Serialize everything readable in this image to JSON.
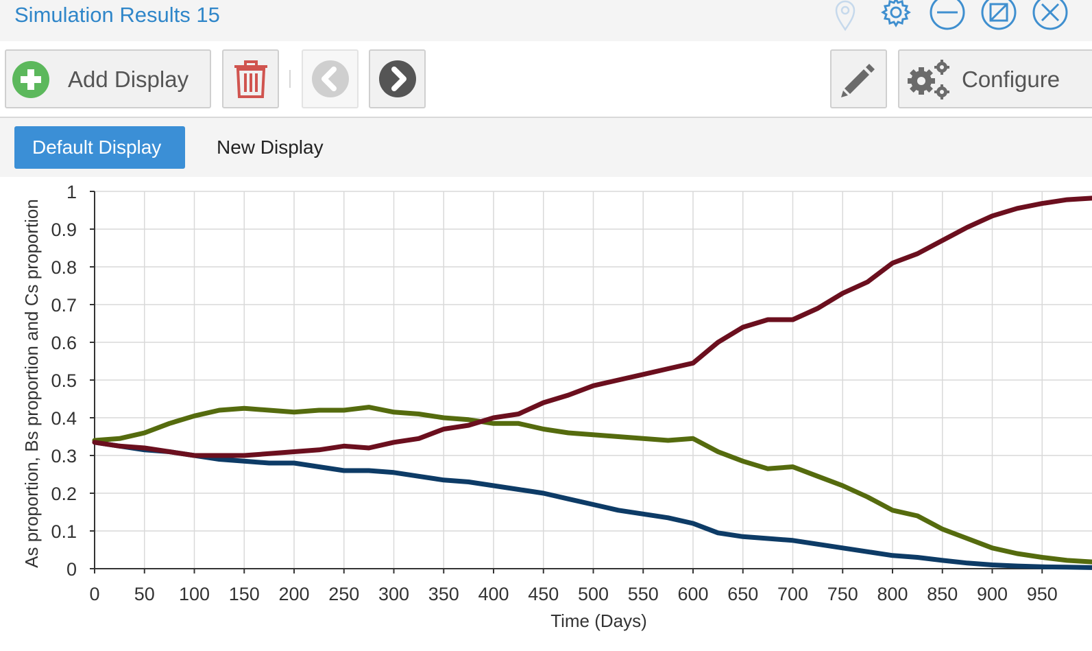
{
  "window": {
    "title": "Simulation Results 15",
    "icons": [
      "pin-icon",
      "settings-icon",
      "minimize-icon",
      "restore-icon",
      "close-icon"
    ]
  },
  "toolbar": {
    "add_display_label": "Add Display",
    "configure_label": "Configure",
    "icons": [
      "plus-circle-icon",
      "trash-icon",
      "chevron-left-icon",
      "chevron-right-icon",
      "pencil-icon",
      "gears-icon"
    ]
  },
  "tabs": [
    {
      "label": "Default Display",
      "active": true
    },
    {
      "label": "New Display",
      "active": false
    }
  ],
  "colors": {
    "title": "#2f86c9",
    "active_tab": "#3b8fd6",
    "add_icon": "#5cb85c",
    "trash_icon": "#c9302c",
    "series_as": "#0d3b66",
    "series_bs": "#556b0e",
    "series_cs": "#6b0f1e"
  },
  "chart_data": {
    "type": "line",
    "xlabel": "Time (Days)",
    "ylabel": "As proportion, Bs proportion and Cs proportion",
    "xlim": [
      0,
      1000
    ],
    "ylim": [
      0,
      1
    ],
    "xticks": [
      0,
      50,
      100,
      150,
      200,
      250,
      300,
      350,
      400,
      450,
      500,
      550,
      600,
      650,
      700,
      750,
      800,
      850,
      900,
      950
    ],
    "yticks": [
      0,
      0.1,
      0.2,
      0.3,
      0.4,
      0.5,
      0.6,
      0.7,
      0.8,
      0.9,
      1
    ],
    "ytick_labels": [
      "0",
      "0.1",
      "0.2",
      "0.3",
      "0.4",
      "0.5",
      "0.6",
      "0.7",
      "0.8",
      "0.9",
      "1"
    ],
    "grid": true,
    "legend": "none",
    "x": [
      0,
      25,
      50,
      75,
      100,
      125,
      150,
      175,
      200,
      225,
      250,
      275,
      300,
      325,
      350,
      375,
      400,
      425,
      450,
      475,
      500,
      525,
      550,
      575,
      600,
      625,
      650,
      675,
      700,
      725,
      750,
      775,
      800,
      825,
      850,
      875,
      900,
      925,
      950,
      975,
      1000
    ],
    "series": [
      {
        "values": [
          0.335,
          0.325,
          0.315,
          0.31,
          0.3,
          0.29,
          0.285,
          0.28,
          0.28,
          0.27,
          0.26,
          0.26,
          0.255,
          0.245,
          0.235,
          0.23,
          0.22,
          0.21,
          0.2,
          0.185,
          0.17,
          0.155,
          0.145,
          0.135,
          0.12,
          0.095,
          0.085,
          0.08,
          0.075,
          0.065,
          0.055,
          0.045,
          0.035,
          0.03,
          0.022,
          0.015,
          0.01,
          0.007,
          0.005,
          0.004,
          0.003
        ]
      },
      {
        "values": [
          0.34,
          0.345,
          0.36,
          0.385,
          0.405,
          0.42,
          0.425,
          0.42,
          0.415,
          0.42,
          0.42,
          0.428,
          0.415,
          0.41,
          0.4,
          0.395,
          0.385,
          0.385,
          0.37,
          0.36,
          0.355,
          0.35,
          0.345,
          0.34,
          0.345,
          0.31,
          0.285,
          0.265,
          0.27,
          0.245,
          0.22,
          0.19,
          0.155,
          0.14,
          0.105,
          0.08,
          0.055,
          0.04,
          0.03,
          0.022,
          0.018
        ]
      },
      {
        "values": [
          0.335,
          0.325,
          0.32,
          0.31,
          0.3,
          0.3,
          0.3,
          0.305,
          0.31,
          0.315,
          0.325,
          0.32,
          0.335,
          0.345,
          0.37,
          0.38,
          0.4,
          0.41,
          0.44,
          0.46,
          0.485,
          0.5,
          0.515,
          0.53,
          0.545,
          0.6,
          0.64,
          0.66,
          0.66,
          0.69,
          0.73,
          0.76,
          0.81,
          0.835,
          0.87,
          0.905,
          0.935,
          0.955,
          0.968,
          0.978,
          0.982
        ]
      }
    ]
  }
}
